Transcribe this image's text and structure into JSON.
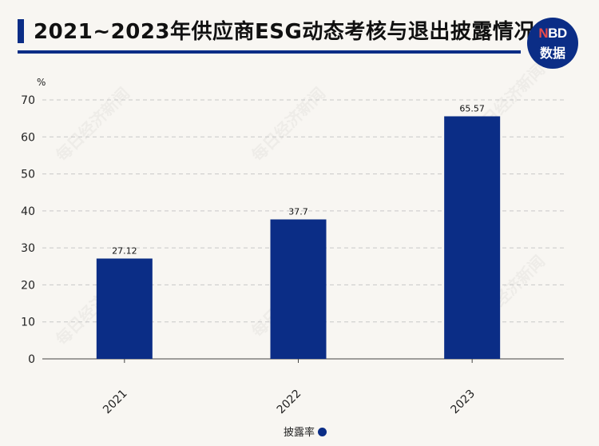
{
  "title": "2021~2023年供应商ESG动态考核与退出披露情况",
  "logo": {
    "top_accent": "N",
    "top_rest": "BD",
    "bottom": "数据"
  },
  "watermark": "每日经济新闻",
  "colors": {
    "bar": "#0b2d86",
    "grid": "#c8c8c8",
    "axis": "#444444"
  },
  "chart_data": {
    "type": "bar",
    "categories": [
      "2021",
      "2022",
      "2023"
    ],
    "series": [
      {
        "name": "披露率",
        "values": [
          27.12,
          37.7,
          65.57
        ]
      }
    ],
    "data_labels": [
      "27.12",
      "37.7",
      "65.57"
    ],
    "ylabel": "%",
    "ylim": [
      0,
      70
    ],
    "yticks": [
      0,
      10,
      20,
      30,
      40,
      50,
      60,
      70
    ],
    "grid": true,
    "legend_position": "bottom-center"
  }
}
